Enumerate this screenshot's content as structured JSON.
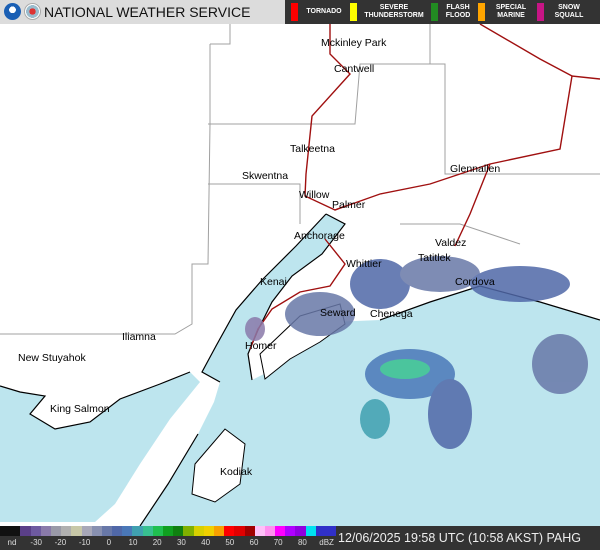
{
  "header": {
    "title": "NATIONAL WEATHER SERVICE",
    "logos": [
      "NOAA",
      "NWS"
    ]
  },
  "warnings": [
    {
      "label": "TORNADO",
      "color": "#ff0000"
    },
    {
      "label": "SEVERE THUNDERSTORM",
      "color": "#ffff00"
    },
    {
      "label": "FLASH FLOOD",
      "color": "#228b22"
    },
    {
      "label": "SPECIAL MARINE",
      "color": "#ffa500"
    },
    {
      "label": "SNOW SQUALL",
      "color": "#c71585"
    }
  ],
  "colors": {
    "water": "#bde5ee",
    "land": "#ffffff",
    "roads": "#a01010",
    "borders": "#a0a0a0"
  },
  "cities": [
    {
      "name": "Mckinley Park"
    },
    {
      "name": "Cantwell"
    },
    {
      "name": "Talkeetna"
    },
    {
      "name": "Skwentna"
    },
    {
      "name": "Willow"
    },
    {
      "name": "Palmer"
    },
    {
      "name": "Glennallen"
    },
    {
      "name": "Anchorage"
    },
    {
      "name": "Valdez"
    },
    {
      "name": "Whittier"
    },
    {
      "name": "Tatitlek"
    },
    {
      "name": "Cordova"
    },
    {
      "name": "Kenai"
    },
    {
      "name": "Seward"
    },
    {
      "name": "Chenega"
    },
    {
      "name": "Homer"
    },
    {
      "name": "Iliamna"
    },
    {
      "name": "New Stuyahok"
    },
    {
      "name": "King Salmon"
    },
    {
      "name": "Kodiak"
    }
  ],
  "legend": {
    "labels": [
      "nd",
      "-30",
      "-20",
      "-10",
      "0",
      "10",
      "20",
      "30",
      "40",
      "50",
      "60",
      "70",
      "80",
      "dBZ"
    ],
    "colors": [
      "#111111",
      "#111111",
      "#5a3f88",
      "#6e5aa0",
      "#8a7aaa",
      "#9a9aa8",
      "#b0b0b0",
      "#c8c8a8",
      "#a8a8b8",
      "#8890b0",
      "#6878a8",
      "#5068a8",
      "#4a78b8",
      "#40a0b0",
      "#38c090",
      "#20c050",
      "#10a020",
      "#108010",
      "#80b000",
      "#d8d000",
      "#f0d000",
      "#f8a000",
      "#ff0000",
      "#e00000",
      "#a00000",
      "#ffc0f8",
      "#ff90f0",
      "#ff00ff",
      "#b000ff",
      "#9000e0",
      "#00e0f0",
      "#3030c8",
      "#3030c8"
    ]
  },
  "timestamp": "12/06/2025 19:58 UTC (10:58 AKST) PAHG"
}
